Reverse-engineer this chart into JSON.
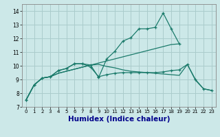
{
  "title": "",
  "xlabel": "Humidex (Indice chaleur)",
  "bg_color": "#cce8e8",
  "grid_color": "#aacccc",
  "line_color": "#1a7a6a",
  "xlim": [
    -0.5,
    23.5
  ],
  "ylim": [
    7,
    14.5
  ],
  "xticks": [
    0,
    1,
    2,
    3,
    4,
    5,
    6,
    7,
    8,
    9,
    10,
    11,
    12,
    13,
    14,
    15,
    16,
    17,
    18,
    19,
    20,
    21,
    22,
    23
  ],
  "yticks": [
    7,
    8,
    9,
    10,
    11,
    12,
    13,
    14
  ],
  "line1_x": [
    0,
    1,
    2,
    3,
    4,
    5,
    6,
    7,
    8,
    9,
    10,
    11,
    12,
    13,
    14,
    15,
    16,
    17,
    18,
    19
  ],
  "line1_y": [
    7.5,
    8.6,
    9.1,
    9.2,
    9.65,
    9.8,
    10.15,
    10.15,
    10.05,
    9.15,
    10.5,
    11.05,
    11.8,
    12.05,
    12.7,
    12.7,
    12.8,
    13.85,
    12.7,
    11.6
  ],
  "line2_x": [
    0,
    1,
    2,
    3,
    4,
    5,
    6,
    7,
    8,
    9,
    10,
    11,
    12,
    13,
    14,
    15,
    16,
    17,
    18,
    19,
    20,
    21,
    22,
    23
  ],
  "line2_y": [
    7.5,
    8.6,
    9.1,
    9.2,
    9.65,
    9.8,
    10.15,
    10.15,
    9.9,
    9.2,
    9.35,
    9.45,
    9.5,
    9.5,
    9.5,
    9.5,
    9.5,
    9.55,
    9.65,
    9.7,
    10.1,
    9.0,
    8.32,
    8.2
  ],
  "line3_x": [
    0,
    1,
    2,
    3,
    4,
    5,
    6,
    7,
    8,
    9,
    10,
    11,
    12,
    13,
    14,
    15,
    16,
    17,
    18,
    19
  ],
  "line3_y": [
    7.5,
    8.6,
    9.1,
    9.2,
    9.45,
    9.6,
    9.75,
    9.9,
    10.05,
    10.2,
    10.35,
    10.5,
    10.65,
    10.8,
    10.95,
    11.1,
    11.25,
    11.4,
    11.55,
    11.6
  ],
  "line4_x": [
    0,
    1,
    2,
    3,
    4,
    5,
    6,
    7,
    8,
    9,
    10,
    11,
    12,
    13,
    14,
    15,
    16,
    17,
    18,
    19,
    20,
    21,
    22,
    23
  ],
  "line4_y": [
    7.5,
    8.6,
    9.1,
    9.2,
    9.45,
    9.6,
    9.75,
    9.9,
    10.05,
    10.1,
    9.95,
    9.85,
    9.7,
    9.6,
    9.55,
    9.5,
    9.45,
    9.4,
    9.35,
    9.3,
    10.1,
    8.95,
    8.32,
    8.2
  ],
  "xlabel_color": "#00008b",
  "xlabel_fontsize": 7.5
}
